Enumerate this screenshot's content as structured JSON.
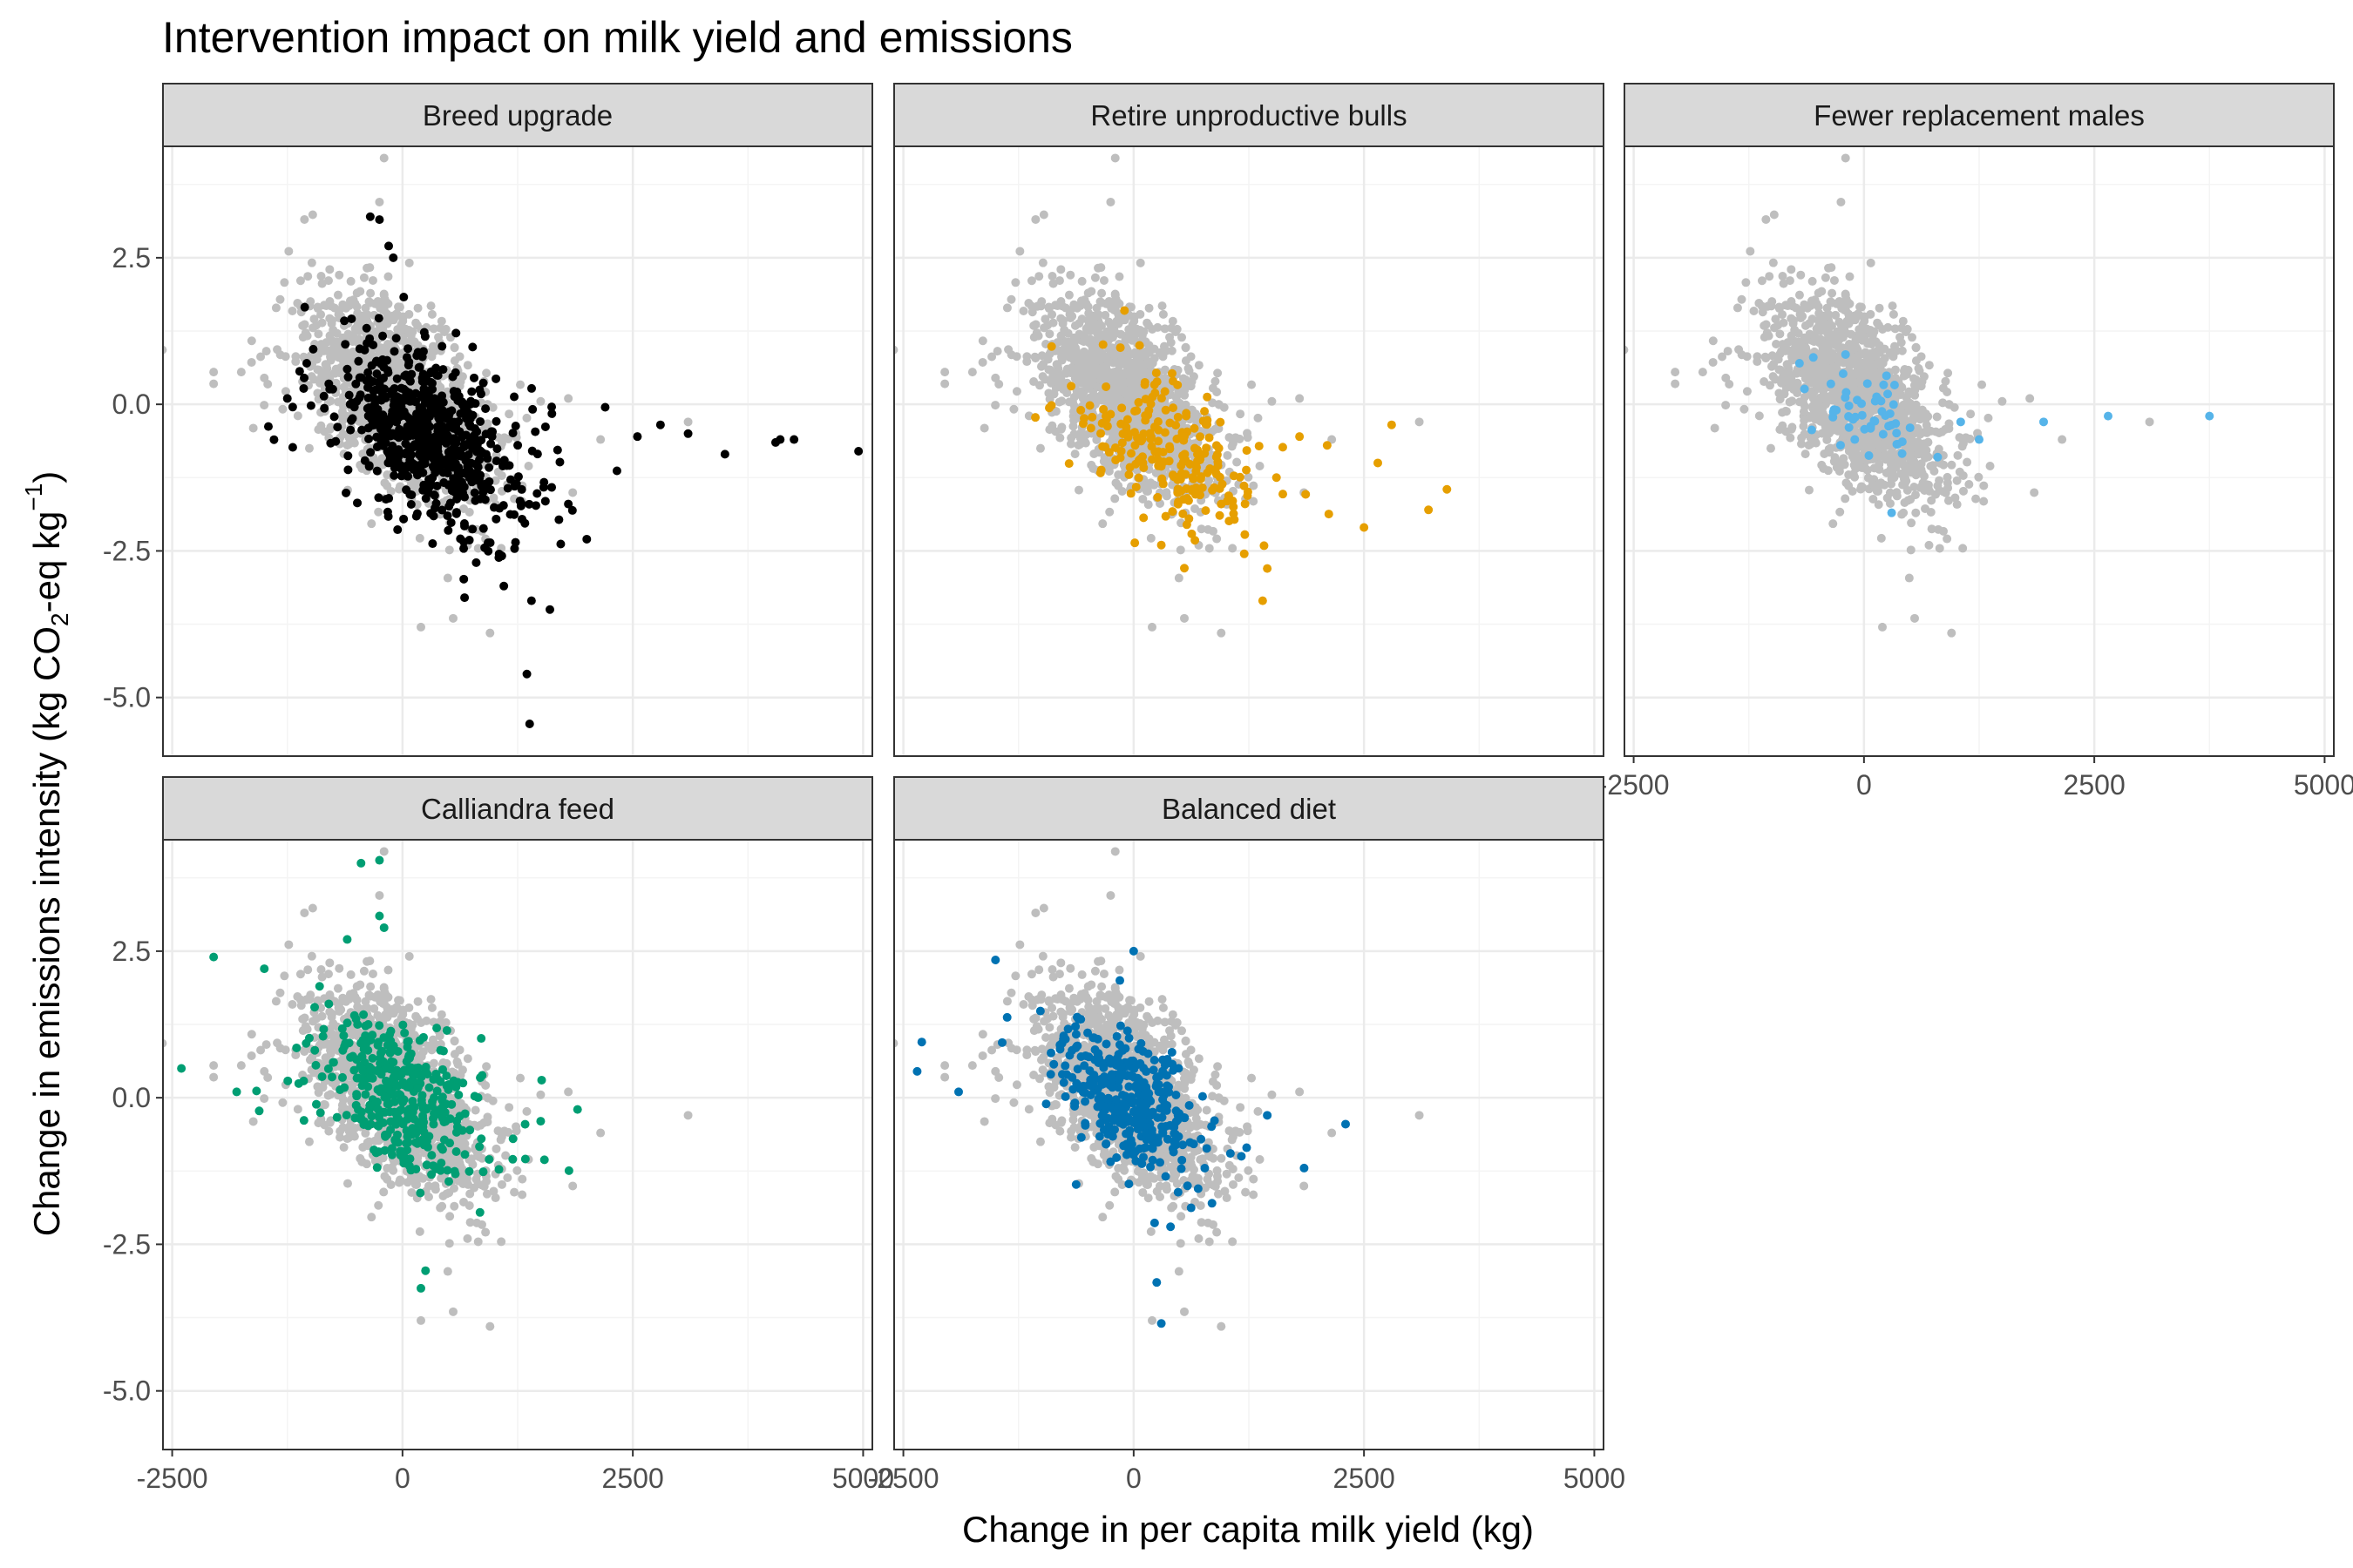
{
  "chart_data": {
    "type": "scatter",
    "title": "Intervention impact on milk yield and emissions",
    "xlabel": "Change in per capita milk yield (kg)",
    "ylabel_parts": [
      "Change in emissions intensity (kg CO",
      "2",
      "-eq kg",
      "−1",
      ")"
    ],
    "xlim": [
      -2600,
      5100
    ],
    "ylim": [
      -6.0,
      4.4
    ],
    "x_ticks": [
      -2500,
      0,
      2500,
      5000
    ],
    "x_tick_labels": [
      "-2500",
      "0",
      "2500",
      "5000"
    ],
    "y_ticks": [
      -5.0,
      -2.5,
      0.0,
      2.5
    ],
    "y_tick_labels": [
      "-5.0",
      "-2.5",
      "0.0",
      "2.5"
    ],
    "grid": true,
    "legend": "none",
    "colors": {
      "background_points": "#bebebe",
      "strip_fill": "#d9d9d9",
      "panel_border": "#333333",
      "grid_major": "#ebebeb",
      "grid_minor": "#f4f4f4"
    },
    "background_series": {
      "name": "",
      "description_cluster": {
        "center": [
          -50,
          0.05
        ],
        "x_spread": 420,
        "y_spread": 0.9
      },
      "extreme_points": [
        [
          -2050,
          0.55
        ],
        [
          -2050,
          0.35
        ],
        [
          -1750,
          0.55
        ],
        [
          -1500,
          0.45
        ],
        [
          -200,
          4.2
        ],
        [
          -250,
          3.45
        ],
        [
          950,
          -3.9
        ],
        [
          200,
          -3.8
        ],
        [
          550,
          -3.65
        ],
        [
          2150,
          -0.6
        ],
        [
          3100,
          -0.3
        ],
        [
          1800,
          0.1
        ],
        [
          1500,
          0.05
        ]
      ]
    },
    "panels": [
      {
        "name": "Breed upgrade",
        "color": "#000000",
        "cluster": {
          "center": [
            300,
            -0.55
          ],
          "x_spread": 420,
          "y_spread": 0.75
        },
        "points": [
          [
            4950,
            -0.8
          ],
          [
            4250,
            -0.6
          ],
          [
            4100,
            -0.6
          ],
          [
            4050,
            -0.65
          ],
          [
            3500,
            -0.85
          ],
          [
            3100,
            -0.5
          ],
          [
            2800,
            -0.35
          ],
          [
            2550,
            -0.55
          ],
          [
            2200,
            -0.05
          ],
          [
            1600,
            -3.5
          ],
          [
            1400,
            -3.35
          ],
          [
            1350,
            -4.6
          ],
          [
            1380,
            -5.45
          ],
          [
            2000,
            -2.3
          ],
          [
            1800,
            -1.7
          ],
          [
            -350,
            3.2
          ],
          [
            -250,
            3.15
          ],
          [
            -150,
            2.7
          ],
          [
            -100,
            2.5
          ],
          [
            -1250,
            0.1
          ],
          [
            -800,
            0.35
          ],
          [
            -600,
            0.6
          ],
          [
            800,
            -2.7
          ],
          [
            1100,
            -3.1
          ]
        ]
      },
      {
        "name": "Retire unproductive bulls",
        "color": "#E69F00",
        "cluster": {
          "center": [
            400,
            -0.8
          ],
          "x_spread": 380,
          "y_spread": 0.6
        },
        "points": [
          [
            3400,
            -1.45
          ],
          [
            3200,
            -1.8
          ],
          [
            2650,
            -1.0
          ],
          [
            2500,
            -2.1
          ],
          [
            1800,
            -0.55
          ],
          [
            1400,
            -3.35
          ],
          [
            1450,
            -2.8
          ],
          [
            1200,
            -2.55
          ],
          [
            300,
            -2.4
          ],
          [
            -100,
            1.6
          ],
          [
            -300,
            0.3
          ],
          [
            2800,
            -0.35
          ],
          [
            2100,
            -0.7
          ],
          [
            950,
            -1.7
          ],
          [
            600,
            -1.95
          ]
        ]
      },
      {
        "name": "Fewer replacement males",
        "color": "#56B4E9",
        "cluster": {
          "center": [
            100,
            -0.2
          ],
          "x_spread": 280,
          "y_spread": 0.4
        },
        "points": [
          [
            3750,
            -0.2
          ],
          [
            2650,
            -0.2
          ],
          [
            1950,
            -0.3
          ],
          [
            1250,
            -0.6
          ],
          [
            1050,
            -0.3
          ],
          [
            800,
            -0.9
          ],
          [
            -700,
            0.7
          ],
          [
            -550,
            0.8
          ],
          [
            -200,
            0.85
          ],
          [
            300,
            -1.85
          ],
          [
            -300,
            -0.1
          ],
          [
            150,
            0.1
          ],
          [
            500,
            -0.4
          ],
          [
            -100,
            -0.6
          ]
        ]
      },
      {
        "name": "Calliandra feed",
        "color": "#009E73",
        "cluster": {
          "center": [
            -50,
            0.1
          ],
          "x_spread": 360,
          "y_spread": 0.65
        },
        "points": [
          [
            -2400,
            0.5
          ],
          [
            -2050,
            2.4
          ],
          [
            -1500,
            2.2
          ],
          [
            -1150,
            0.85
          ],
          [
            -900,
            1.9
          ],
          [
            -800,
            1.6
          ],
          [
            -600,
            2.7
          ],
          [
            -450,
            4.0
          ],
          [
            -250,
            4.05
          ],
          [
            -250,
            3.1
          ],
          [
            -200,
            2.9
          ],
          [
            1900,
            -0.2
          ],
          [
            1500,
            -0.4
          ],
          [
            1200,
            -0.7
          ],
          [
            200,
            -3.25
          ],
          [
            250,
            -2.95
          ],
          [
            -1800,
            0.1
          ]
        ]
      },
      {
        "name": "Balanced diet",
        "color": "#0072B2",
        "cluster": {
          "center": [
            -50,
            -0.05
          ],
          "x_spread": 320,
          "y_spread": 0.6
        },
        "points": [
          [
            -2300,
            0.95
          ],
          [
            -2350,
            0.45
          ],
          [
            -1900,
            0.1
          ],
          [
            -1500,
            2.35
          ],
          [
            -900,
            0.4
          ],
          [
            -800,
            0.9
          ],
          [
            0,
            2.5
          ],
          [
            -150,
            2.0
          ],
          [
            2300,
            -0.45
          ],
          [
            1850,
            -1.2
          ],
          [
            1450,
            -0.3
          ],
          [
            1050,
            -0.95
          ],
          [
            850,
            -1.8
          ],
          [
            300,
            -3.85
          ],
          [
            250,
            -3.15
          ],
          [
            400,
            -2.2
          ],
          [
            700,
            -1.55
          ]
        ]
      }
    ]
  }
}
